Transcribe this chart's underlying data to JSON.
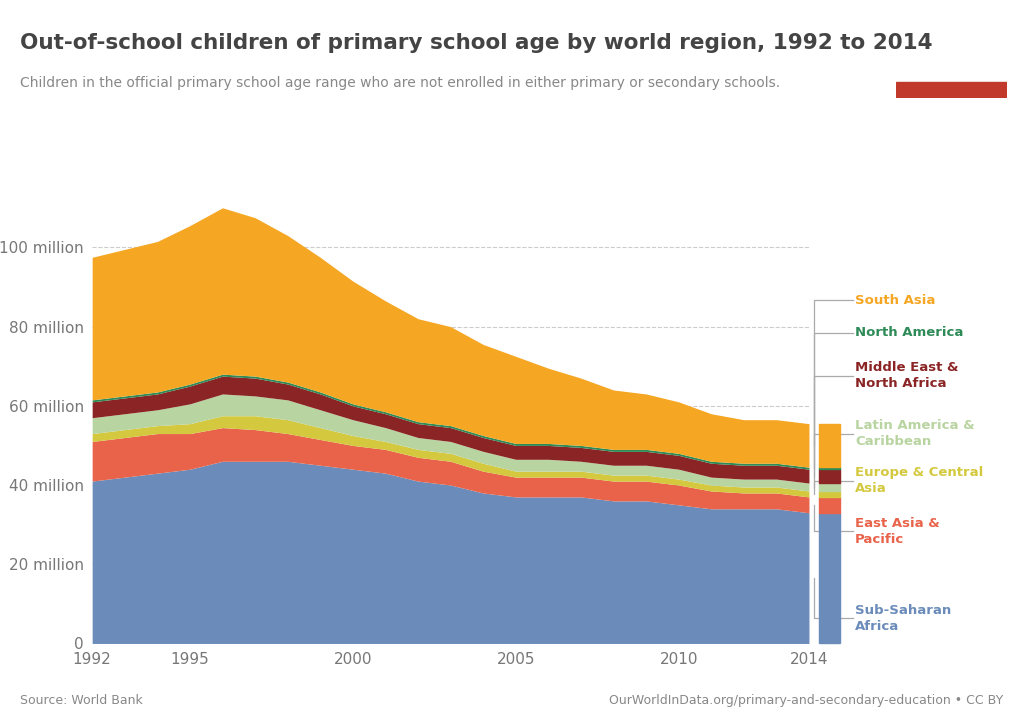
{
  "title": "Out-of-school children of primary school age by world region, 1992 to 2014",
  "subtitle": "Children in the official primary school age range who are not enrolled in either primary or secondary schools.",
  "source_left": "Source: World Bank",
  "source_right": "OurWorldInData.org/primary-and-secondary-education • CC BY",
  "background_color": "#ffffff",
  "plot_bg_color": "#ffffff",
  "years": [
    1992,
    1993,
    1994,
    1995,
    1996,
    1997,
    1998,
    1999,
    2000,
    2001,
    2002,
    2003,
    2004,
    2005,
    2006,
    2007,
    2008,
    2009,
    2010,
    2011,
    2012,
    2013,
    2014
  ],
  "regions": [
    {
      "name": "Sub-Saharan Africa",
      "color": "#6b8cba",
      "values": [
        41,
        42,
        43,
        44,
        46,
        46,
        46,
        45,
        44,
        43,
        41,
        40,
        38,
        37,
        37,
        37,
        36,
        36,
        35,
        34,
        34,
        34,
        33
      ]
    },
    {
      "name": "East Asia & Pacific",
      "color": "#e8634a",
      "values": [
        10,
        10,
        10,
        9,
        8.5,
        8,
        7,
        6.5,
        6,
        6,
        6,
        6,
        5.5,
        5,
        5,
        5,
        5,
        5,
        5,
        4.5,
        4,
        4,
        4
      ]
    },
    {
      "name": "Europe & Central Asia",
      "color": "#d4c93e",
      "values": [
        2,
        2,
        2,
        2.5,
        3,
        3.5,
        3.5,
        3,
        2.5,
        2,
        2,
        2,
        2,
        1.5,
        1.5,
        1.5,
        1.5,
        1.5,
        1.5,
        1.5,
        1.5,
        1.5,
        1.5
      ]
    },
    {
      "name": "Latin America & Caribbean",
      "color": "#b8d4a0",
      "values": [
        4,
        4,
        4,
        5,
        5.5,
        5,
        5,
        4.5,
        4,
        3.5,
        3,
        3,
        3,
        3,
        3,
        2.5,
        2.5,
        2.5,
        2.5,
        2,
        2,
        2,
        2
      ]
    },
    {
      "name": "Middle East & North Africa",
      "color": "#8b2525",
      "values": [
        4,
        4,
        4,
        4.5,
        4.5,
        4.5,
        4,
        4,
        3.5,
        3.5,
        3.5,
        3.5,
        3.5,
        3.5,
        3.5,
        3.5,
        3.5,
        3.5,
        3.5,
        3.5,
        3.5,
        3.5,
        3.5
      ]
    },
    {
      "name": "North America",
      "color": "#2e8b57",
      "values": [
        0.5,
        0.5,
        0.5,
        0.5,
        0.5,
        0.5,
        0.5,
        0.5,
        0.5,
        0.5,
        0.5,
        0.5,
        0.5,
        0.5,
        0.5,
        0.5,
        0.5,
        0.5,
        0.5,
        0.5,
        0.5,
        0.5,
        0.5
      ]
    },
    {
      "name": "South Asia",
      "color": "#f5a623",
      "values": [
        36,
        37,
        38,
        40,
        42,
        40,
        37,
        34,
        31,
        28,
        26,
        25,
        23,
        22,
        19,
        17,
        15,
        14,
        13,
        12,
        11,
        11,
        11
      ]
    }
  ],
  "ytick_labels": [
    "0",
    "20 million",
    "40 million",
    "60 million",
    "80 million",
    "100 million"
  ],
  "ytick_values": [
    0,
    20,
    40,
    60,
    80,
    100
  ],
  "xticks": [
    1992,
    1995,
    2000,
    2005,
    2010,
    2014
  ],
  "ylim_max": 115,
  "grid_color": "#cccccc",
  "logo_bg": "#1a3a5c",
  "logo_red": "#c0392b",
  "legend_items": [
    {
      "reg_idx": 6,
      "label": "South Asia"
    },
    {
      "reg_idx": 5,
      "label": "North America"
    },
    {
      "reg_idx": 4,
      "label": "Middle East &\nNorth Africa"
    },
    {
      "reg_idx": 3,
      "label": "Latin America &\nCaribbean"
    },
    {
      "reg_idx": 2,
      "label": "Europe & Central\nAsia"
    },
    {
      "reg_idx": 1,
      "label": "East Asia &\nPacific"
    },
    {
      "reg_idx": 0,
      "label": "Sub-Saharan\nAfrica"
    }
  ]
}
